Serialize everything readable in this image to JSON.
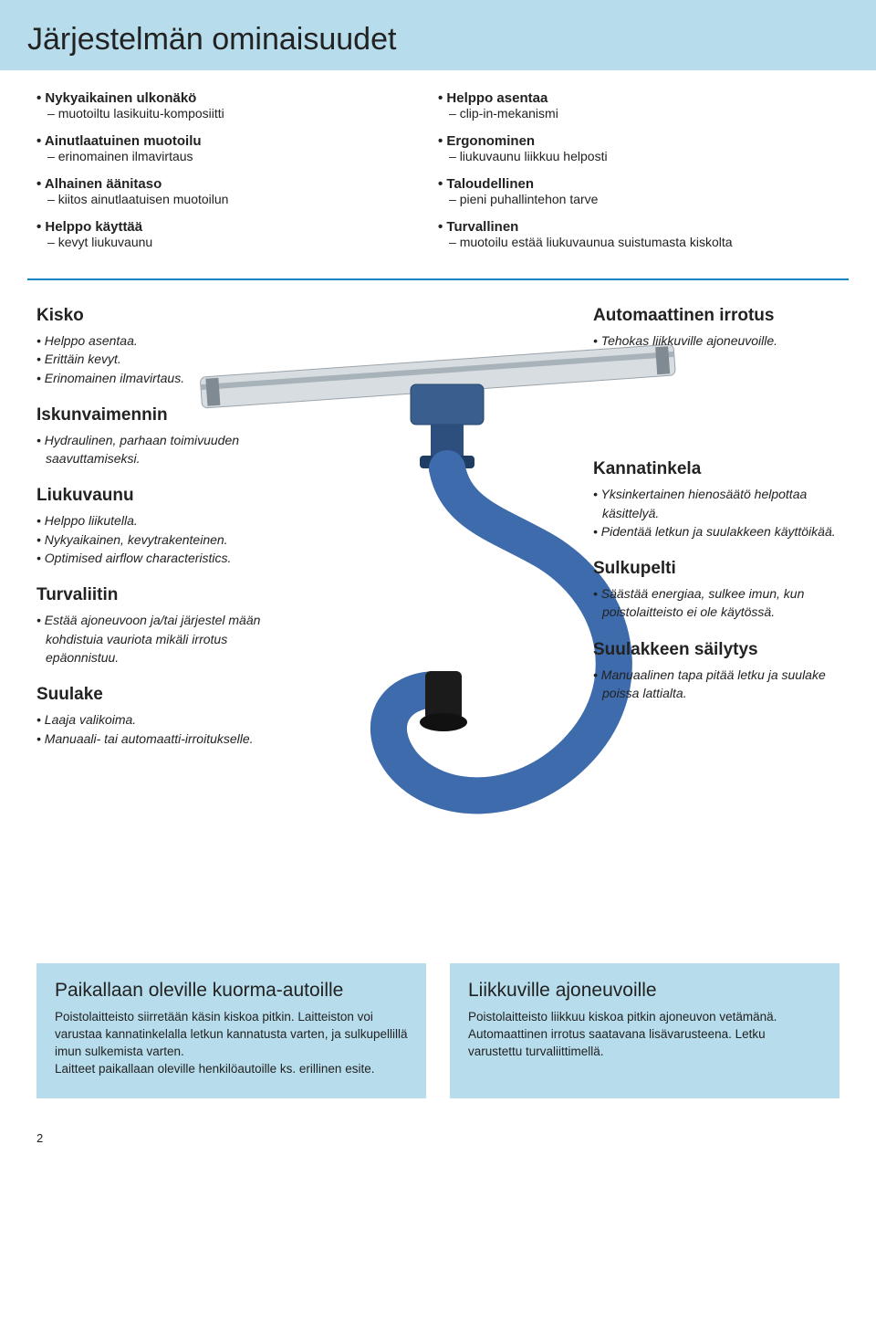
{
  "banner_title": "Järjestelmän ominaisuudet",
  "features_left": [
    {
      "main": "Nykyaikainen ulkonäkö",
      "sub": "muotoiltu lasikuitu-komposiitti"
    },
    {
      "main": "Ainutlaatuinen muotoilu",
      "sub": "erinomainen ilmavirtaus"
    },
    {
      "main": "Alhainen äänitaso",
      "sub": "kiitos ainutlaatuisen muotoilun"
    },
    {
      "main": "Helppo käyttää",
      "sub": "kevyt liukuvaunu"
    }
  ],
  "features_right": [
    {
      "main": "Helppo asentaa",
      "sub": "clip-in-mekanismi"
    },
    {
      "main": "Ergonominen",
      "sub": "liukuvaunu liikkuu helposti"
    },
    {
      "main": "Taloudellinen",
      "sub": "pieni puhallintehon tarve"
    },
    {
      "main": "Turvallinen",
      "sub": "muotoilu estää liukuvaunua suistumasta kiskolta"
    }
  ],
  "left_sections": [
    {
      "title": "Kisko",
      "items": [
        "Helppo asentaa.",
        "Erittäin kevyt.",
        "Erinomainen ilmavirtaus."
      ]
    },
    {
      "title": "Iskunvaimennin",
      "items": [
        "Hydraulinen, parhaan toimivuuden saavuttamiseksi."
      ]
    },
    {
      "title": "Liukuvaunu",
      "items": [
        "Helppo liikutella.",
        "Nykyaikainen, kevytrakenteinen.",
        "Optimised airflow characteristics."
      ]
    },
    {
      "title": "Turvaliitin",
      "items": [
        "Estää ajoneuvoon ja/tai järjestel mään kohdistuia vauriota mikäli irrotus epäonnistuu."
      ]
    },
    {
      "title": "Suulake",
      "items": [
        "Laaja valikoima.",
        "Manuaali- tai automaatti-irroitukselle."
      ]
    }
  ],
  "right_sections": [
    {
      "title": "Automaattinen irrotus",
      "items": [
        "Tehokas liikkuville ajoneuvoille."
      ]
    },
    {
      "title": "Kannatinkela",
      "items": [
        "Yksinkertainen hienosäätö helpottaa käsittelyä.",
        "Pidentää letkun ja suulakkeen käyttöikää."
      ]
    },
    {
      "title": "Sulkupelti",
      "items": [
        "Säästää energiaa, sulkee imun, kun poistolaitteisto ei ole käytössä."
      ]
    },
    {
      "title": "Suulakkeen säilytys",
      "items": [
        "Manuaalinen tapa pitää letku ja suulake poissa lattialta."
      ]
    }
  ],
  "right_section_gap": 120,
  "box_left": {
    "title": "Paikallaan oleville kuorma-autoille",
    "body": "Poistolaitteisto siirretään käsin kiskoa pitkin. Laitteiston voi varustaa kannatinkelalla letkun kannatusta varten, ja sulkupellillä imun sulkemista varten.\nLaitteet paikallaan oleville henkilöautoille ks. erillinen esite."
  },
  "box_right": {
    "title": "Liikkuville ajoneuvoille",
    "body": "Poistolaitteisto liikkuu kiskoa pitkin ajoneuvon vetämänä. Automaattinen irrotus saatavana lisävarusteena. Letku varustettu turvaliittimellä."
  },
  "page_number": "2",
  "colors": {
    "banner_bg": "#b7dceb",
    "rule": "#0a84c6",
    "hose": "#2f5b9e",
    "rail": "#cfd4d8",
    "trolley": "#3a5f8f"
  }
}
